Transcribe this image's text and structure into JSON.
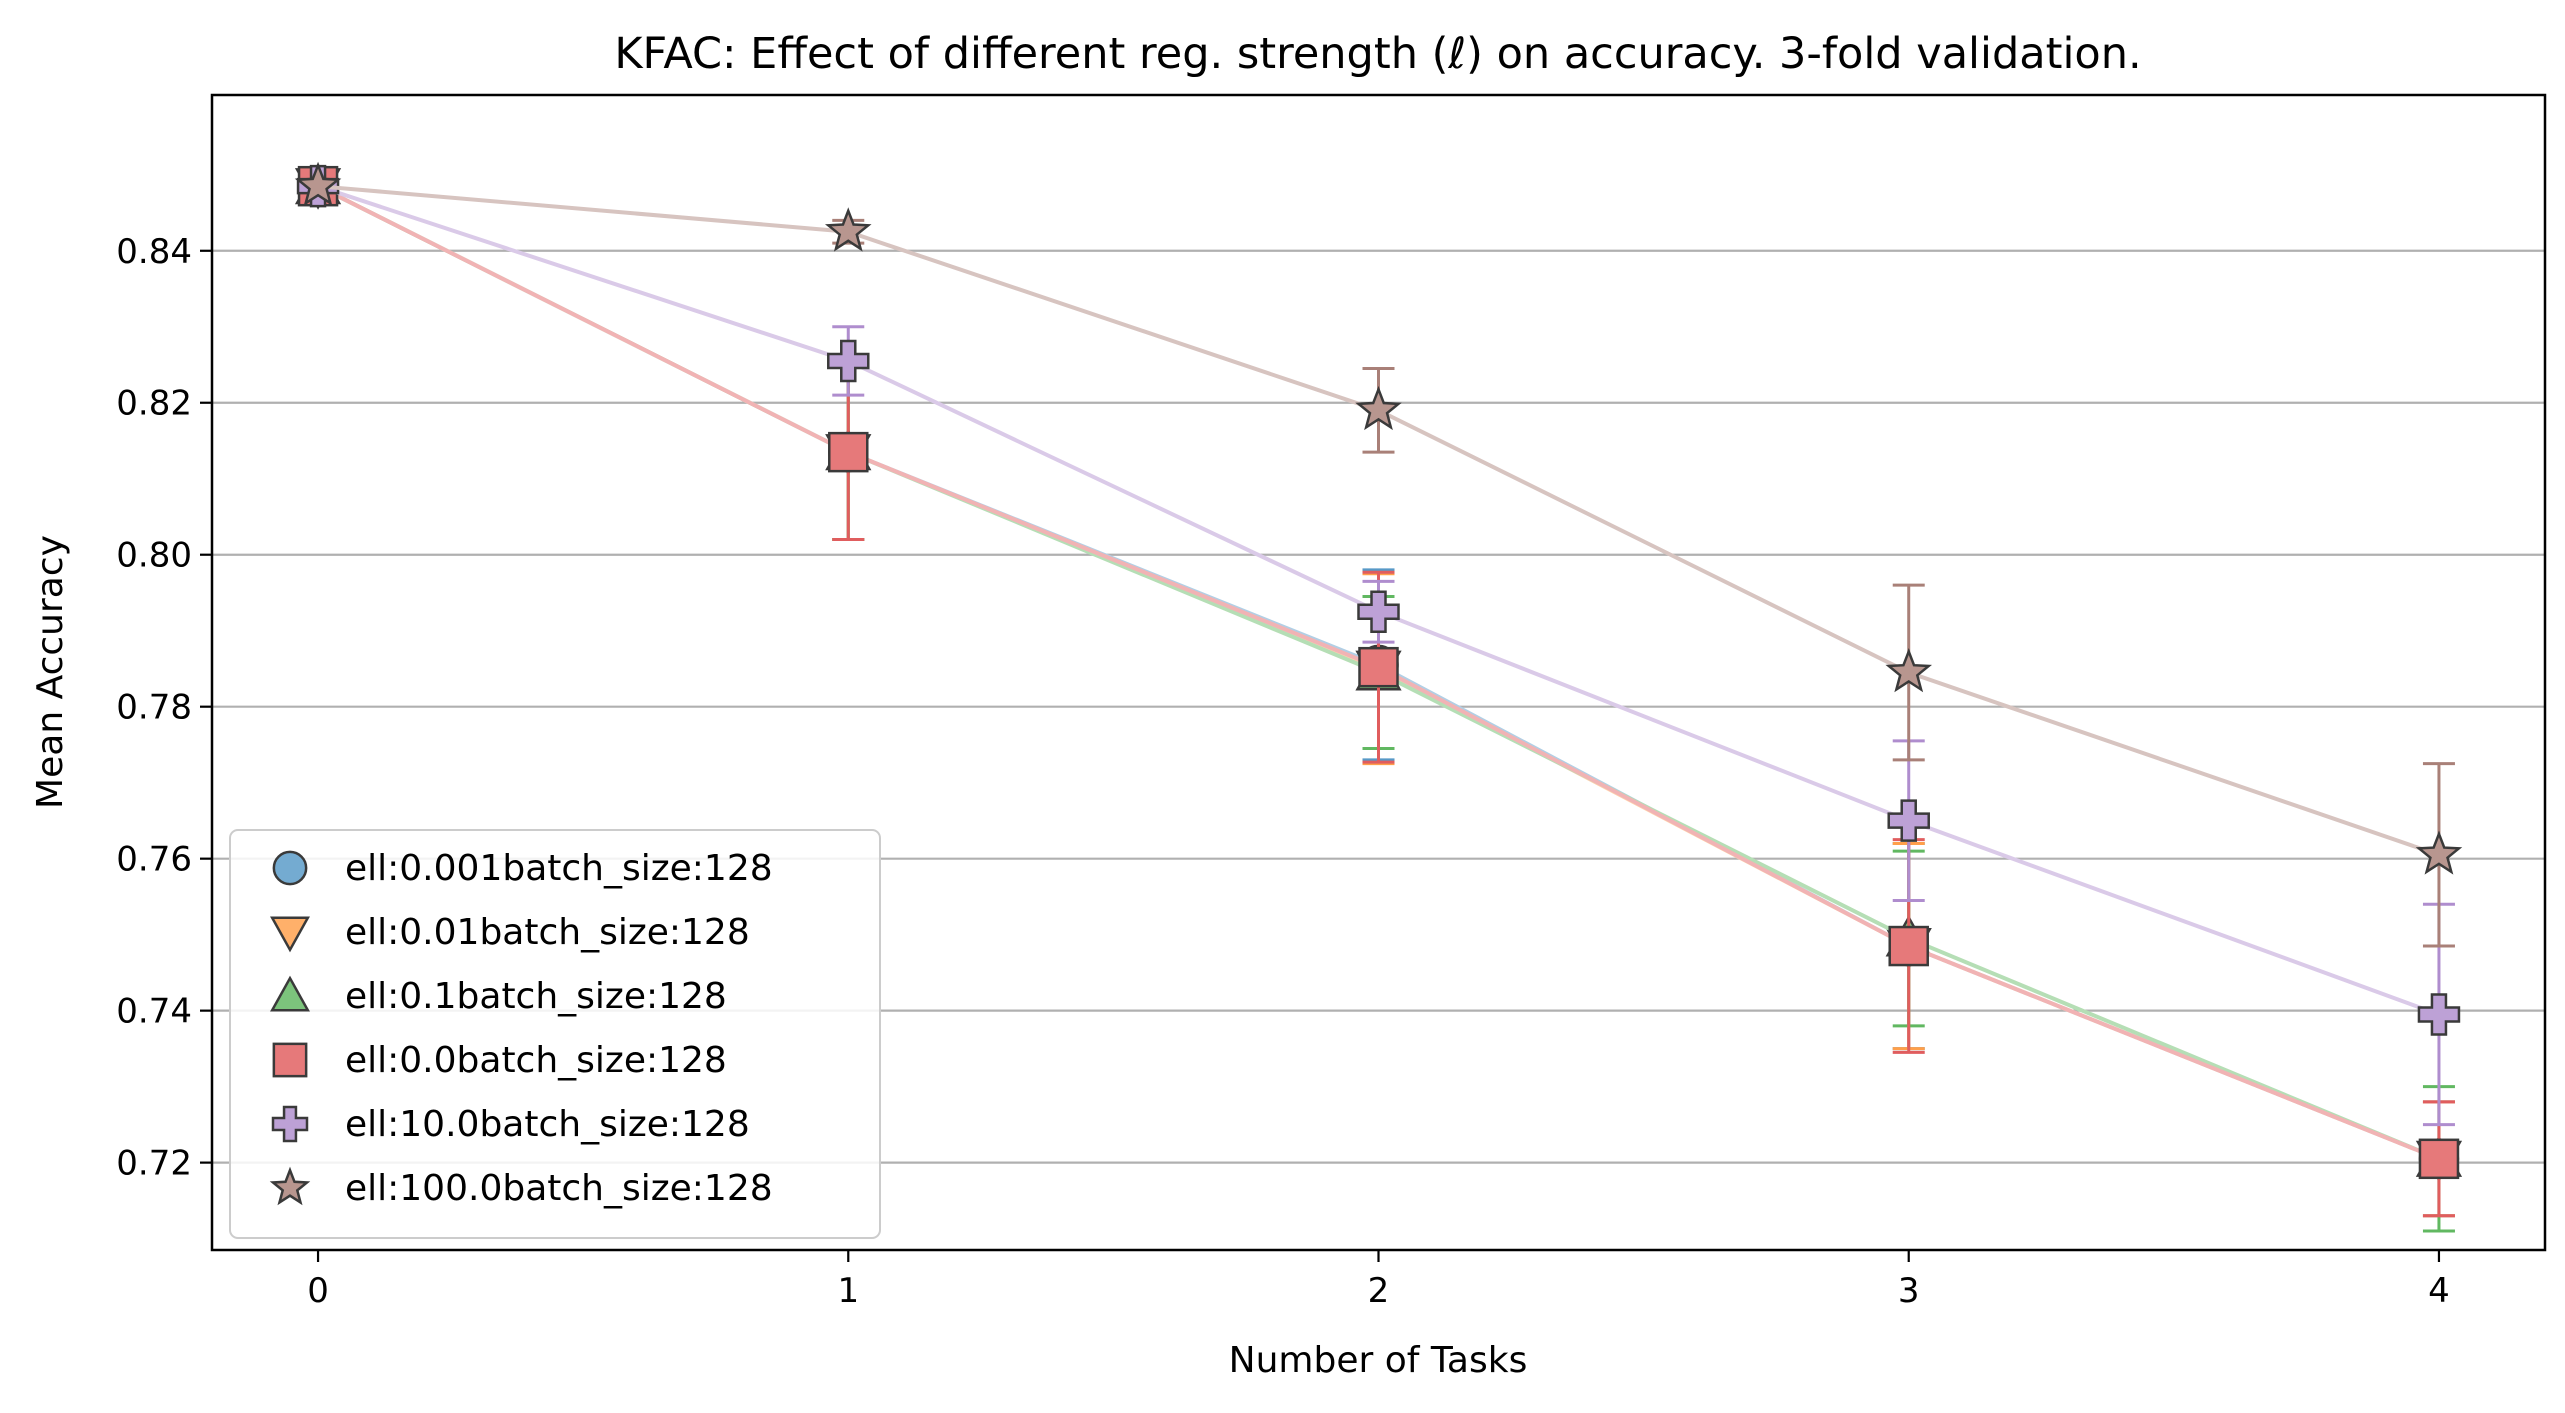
{
  "chart_data": {
    "type": "line",
    "title": "KFAC: Effect of different reg. strength (ℓ) on accuracy. 3-fold validation.",
    "xlabel": "Number of Tasks",
    "ylabel": "Mean Accuracy",
    "x": [
      0,
      1,
      2,
      3,
      4
    ],
    "x_ticks": [
      "0",
      "1",
      "2",
      "3",
      "4"
    ],
    "y_ticks": [
      "0.72",
      "0.74",
      "0.76",
      "0.78",
      "0.80",
      "0.82",
      "0.84"
    ],
    "xlim": [
      -0.2,
      4.2
    ],
    "ylim": [
      0.7085,
      0.8605
    ],
    "grid": "horizontal",
    "legend_position": "lower-left",
    "series": [
      {
        "name": "ell:0.001batch_size:128",
        "marker": "circle",
        "color": "#1f77b4",
        "values": [
          0.8485,
          0.8135,
          0.7855,
          0.7485,
          0.7205
        ],
        "errors": [
          0.0,
          0.0115,
          0.0125,
          0.0135,
          0.0075
        ]
      },
      {
        "name": "ell:0.01batch_size:128",
        "marker": "triangle-down",
        "color": "#ff7f0e",
        "values": [
          0.8485,
          0.8135,
          0.785,
          0.7485,
          0.7205
        ],
        "errors": [
          0.0,
          0.0115,
          0.0125,
          0.0135,
          0.0075
        ]
      },
      {
        "name": "ell:0.1batch_size:128",
        "marker": "triangle-up",
        "color": "#2ca02c",
        "values": [
          0.8485,
          0.8135,
          0.7845,
          0.7495,
          0.7205
        ],
        "errors": [
          0.0,
          0.0115,
          0.01,
          0.0115,
          0.0095
        ]
      },
      {
        "name": "ell:0.0batch_size:128",
        "marker": "square",
        "color": "#d62728",
        "values": [
          0.8485,
          0.8135,
          0.7852,
          0.7485,
          0.7205
        ],
        "errors": [
          0.0,
          0.0115,
          0.0125,
          0.014,
          0.0075
        ]
      },
      {
        "name": "ell:10.0batch_size:128",
        "marker": "plus",
        "color": "#9467bd",
        "values": [
          0.8485,
          0.8255,
          0.7925,
          0.765,
          0.7395
        ],
        "errors": [
          0.0,
          0.0045,
          0.004,
          0.0105,
          0.0145
        ]
      },
      {
        "name": "ell:100.0batch_size:128",
        "marker": "star",
        "color": "#8c564b",
        "values": [
          0.8485,
          0.8425,
          0.819,
          0.7845,
          0.7605
        ],
        "errors": [
          0.0,
          0.0015,
          0.0055,
          0.0115,
          0.012
        ]
      }
    ]
  }
}
